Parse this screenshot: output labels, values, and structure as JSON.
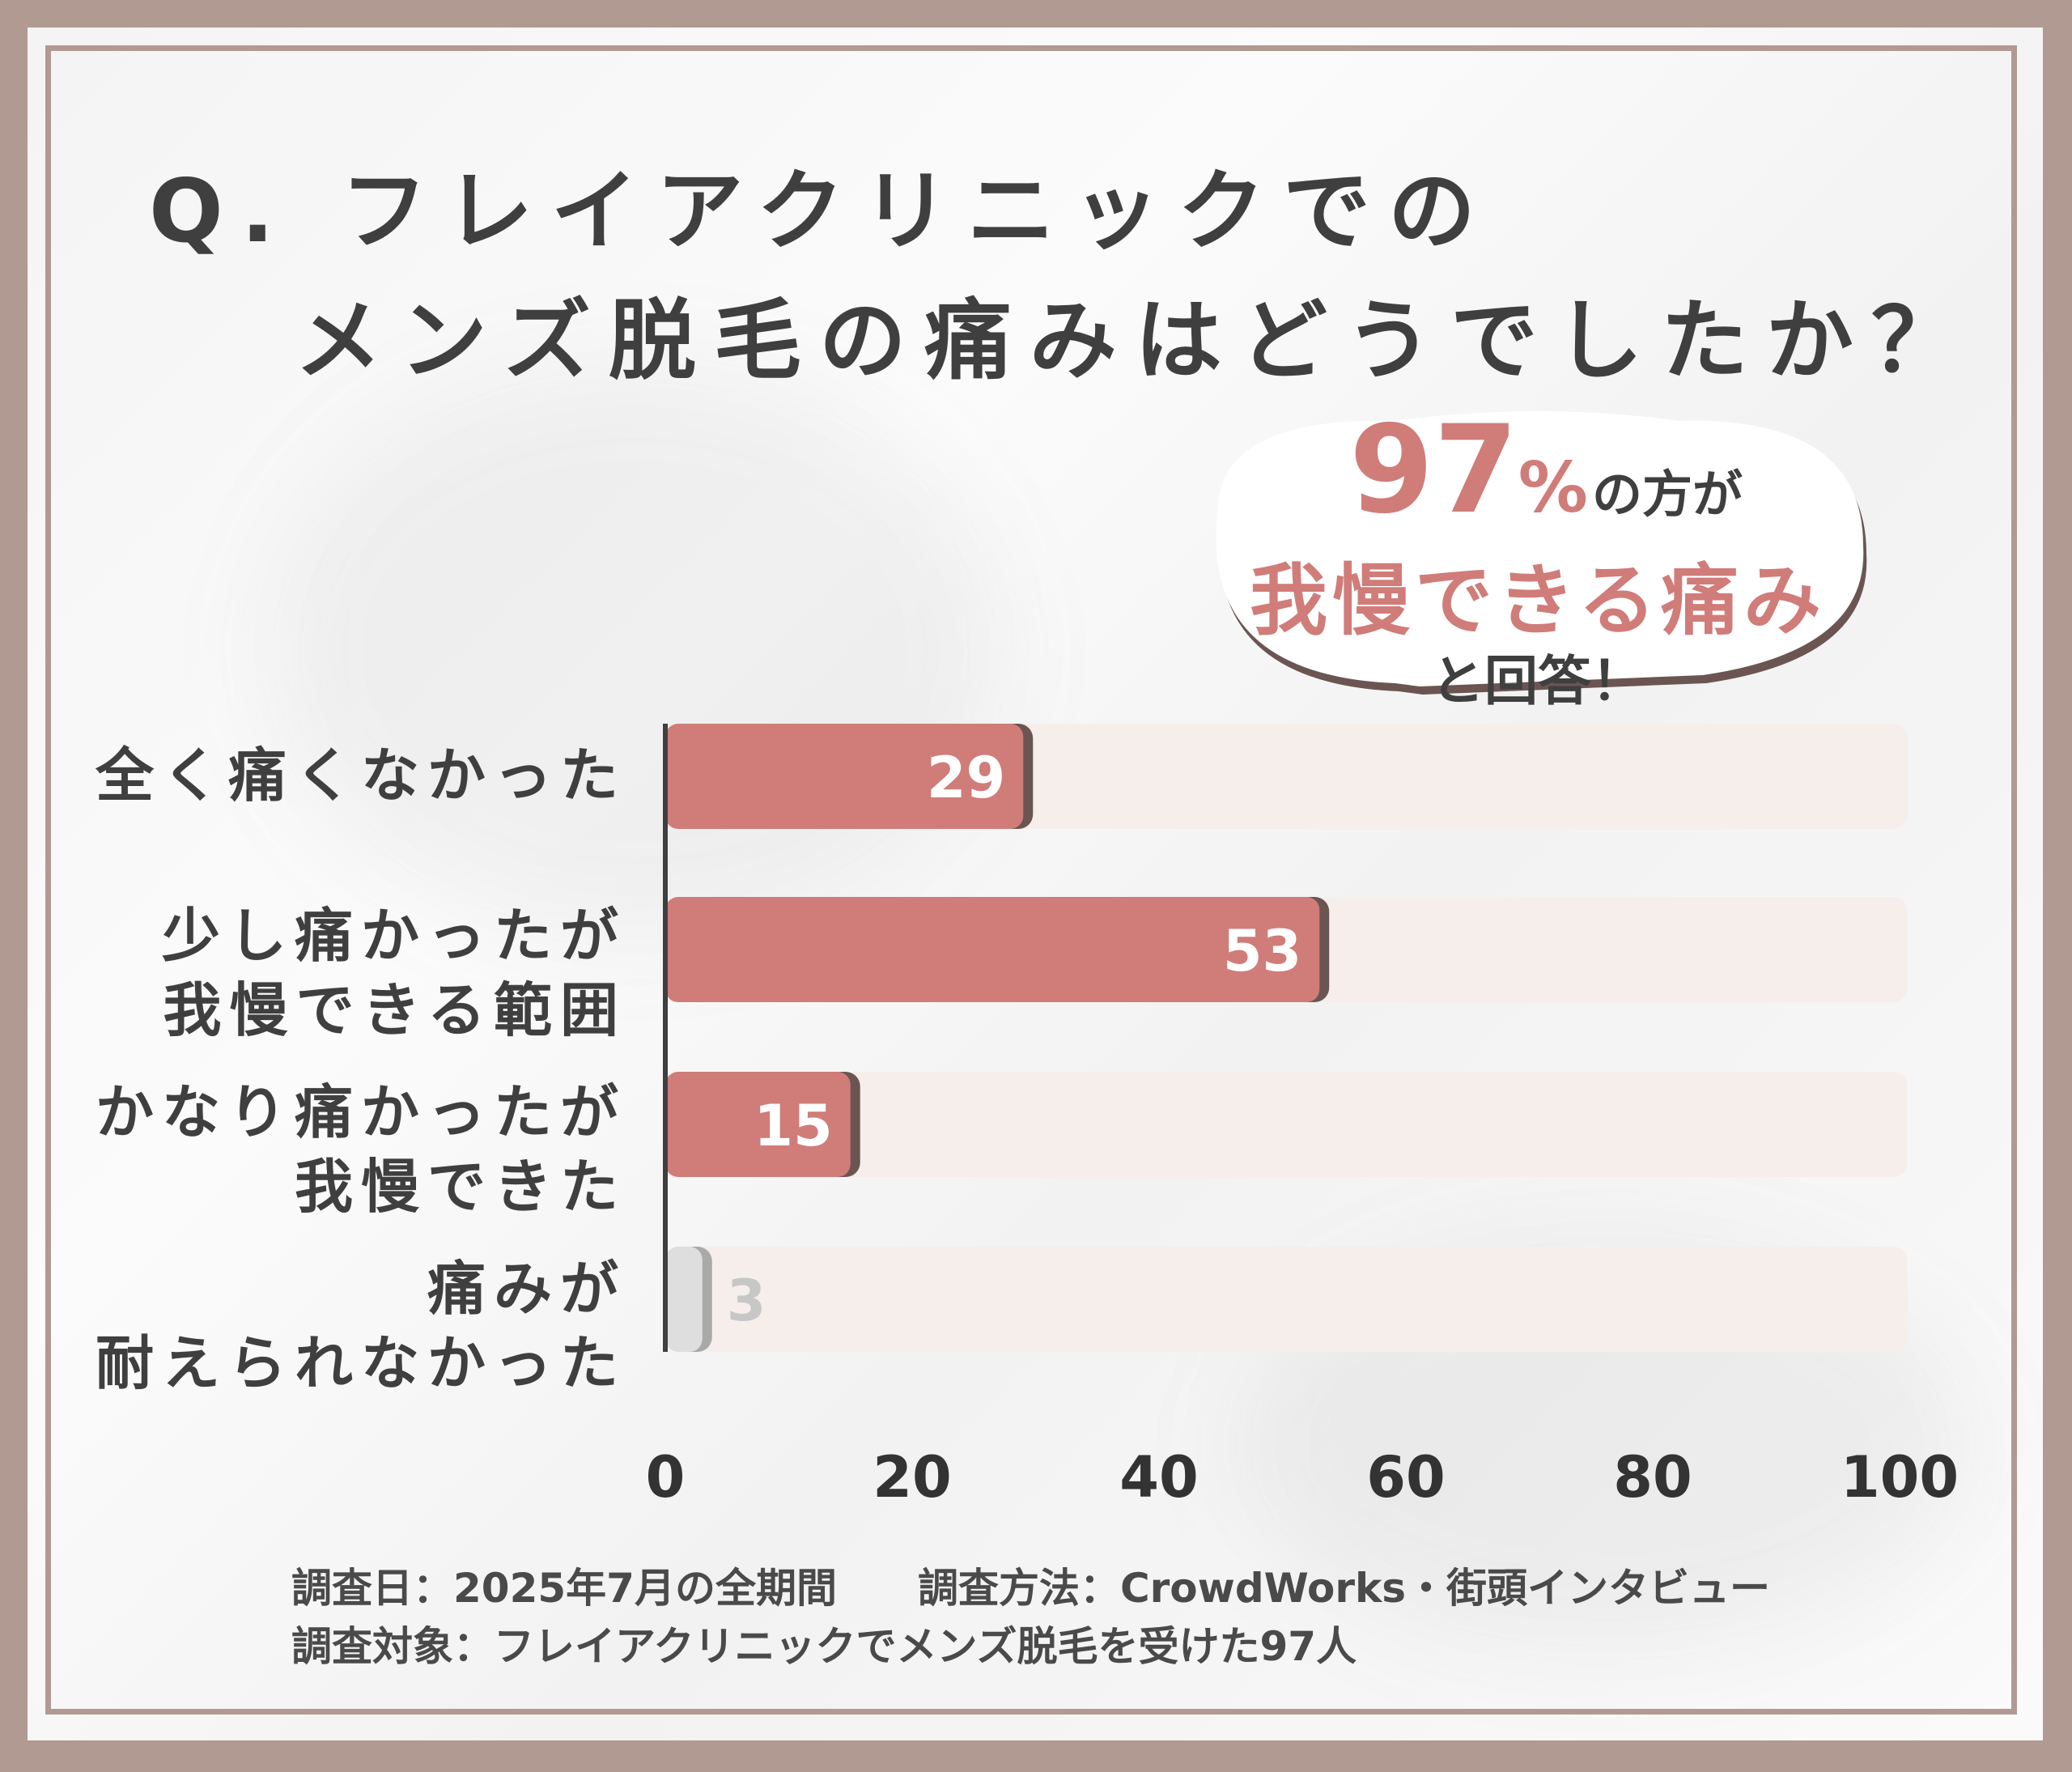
{
  "title": {
    "line1": "Q. フレイアクリニックでの",
    "line2": "メンズ脱毛の痛みはどうでしたか？"
  },
  "callout": {
    "number": "97",
    "percent": "%",
    "text1": "の方が",
    "highlight": "我慢できる痛み",
    "text2": "と回答！"
  },
  "colors": {
    "bar": "#d07c79",
    "bar_shadow": "#6b5552",
    "track": "#f6eeeb",
    "low_bar": "#dedede",
    "frame": "#b09a91"
  },
  "chart_data": {
    "type": "bar",
    "orientation": "horizontal",
    "categories": [
      [
        "全く痛くなかった"
      ],
      [
        "少し痛かったが",
        "我慢できる範囲"
      ],
      [
        "かなり痛かったが",
        "我慢できた"
      ],
      [
        "痛みが",
        "耐えられなかった"
      ]
    ],
    "values": [
      29,
      53,
      15,
      3
    ],
    "value_labels": [
      "29",
      "53",
      "15",
      "3"
    ],
    "xlim": [
      0,
      100
    ],
    "ticks": [
      "0",
      "20",
      "40",
      "60",
      "80",
      "100"
    ]
  },
  "footer": {
    "line1": "調査日：2025年7月の全期間　　調査方法：CrowdWorks・街頭インタビュー",
    "line2": "調査対象：フレイアクリニックでメンズ脱毛を受けた97人"
  }
}
